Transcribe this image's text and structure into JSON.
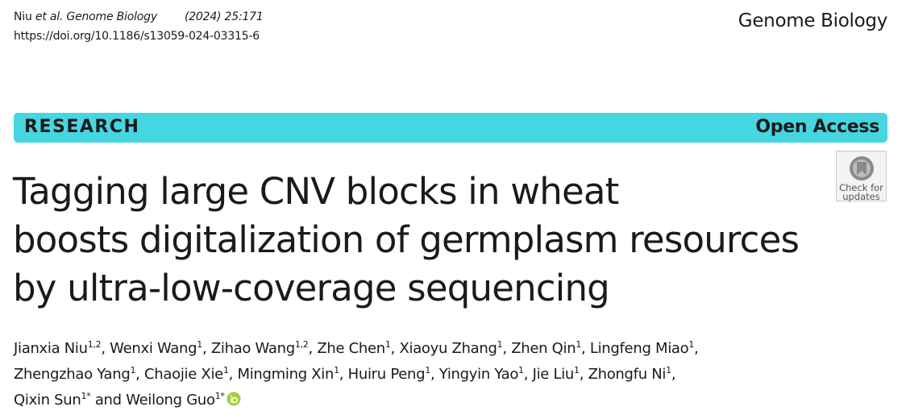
{
  "header": {
    "citation": {
      "author": "Niu",
      "journal": "et al. Genome Biology",
      "issue": "(2024) 25:171"
    },
    "doi": "https://doi.org/10.1186/s13059-024-03315-6",
    "journal": "Genome Biology"
  },
  "banner": {
    "type": "RESEARCH",
    "access": "Open Access"
  },
  "badge": {
    "line1": "Check for",
    "line2": "updates"
  },
  "title": {
    "lines": [
      "Tagging large CNV blocks in wheat",
      "boosts digitalization of germplasm resources",
      "by ultra-low-coverage sequencing"
    ]
  },
  "authors": {
    "lines": [
      [
        {
          "name": "Jianxia Niu",
          "aff": "1,2",
          "sep": ", "
        },
        {
          "name": "Wenxi Wang",
          "aff": "1",
          "sep": ", "
        },
        {
          "name": "Zihao Wang",
          "aff": "1,2",
          "sep": ", "
        },
        {
          "name": "Zhe Chen",
          "aff": "1",
          "sep": ", "
        },
        {
          "name": "Xiaoyu Zhang",
          "aff": "1",
          "sep": ", "
        },
        {
          "name": "Zhen Qin",
          "aff": "1",
          "sep": ", "
        },
        {
          "name": "Lingfeng Miao",
          "aff": "1",
          "sep": ","
        }
      ],
      [
        {
          "name": "Zhengzhao Yang",
          "aff": "1",
          "sep": ", "
        },
        {
          "name": "Chaojie Xie",
          "aff": "1",
          "sep": ", "
        },
        {
          "name": "Mingming Xin",
          "aff": "1",
          "sep": ", "
        },
        {
          "name": "Huiru Peng",
          "aff": "1",
          "sep": ", "
        },
        {
          "name": "Yingyin Yao",
          "aff": "1",
          "sep": ", "
        },
        {
          "name": "Jie Liu",
          "aff": "1",
          "sep": ", "
        },
        {
          "name": "Zhongfu Ni",
          "aff": "1",
          "sep": ","
        }
      ],
      [
        {
          "name": "Qixin Sun",
          "aff": "1*",
          "sep": " and "
        },
        {
          "name": "Weilong Guo",
          "aff": "1*"
        }
      ]
    ]
  }
}
